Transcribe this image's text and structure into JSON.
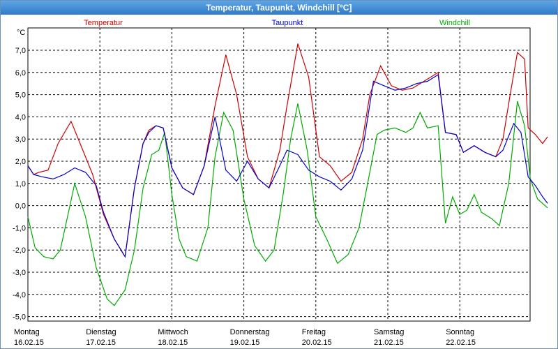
{
  "window": {
    "title": "Temperatur, Taupunkt, Windchill [°C]"
  },
  "chart_data": {
    "type": "line",
    "title": "Temperatur, Taupunkt, Windchill [°C]",
    "ylabel": "°C",
    "ylim": [
      -5.0,
      7.0
    ],
    "y_ticks": [
      "7,0",
      "6,0",
      "5,0",
      "4,0",
      "3,0",
      "2,0",
      "1,0",
      "0,0",
      "-1,0",
      "-2,0",
      "-3,0",
      "-4,0",
      "-5,0"
    ],
    "xlim": [
      0,
      7
    ],
    "x_ticks": [
      {
        "day": "Montag",
        "date": "16.02.15",
        "x": 0
      },
      {
        "day": "Dienstag",
        "date": "17.02.15",
        "x": 1
      },
      {
        "day": "Mittwoch",
        "date": "18.02.15",
        "x": 2
      },
      {
        "day": "Donnerstag",
        "date": "19.02.15",
        "x": 3
      },
      {
        "day": "Freitag",
        "date": "20.02.15",
        "x": 4
      },
      {
        "day": "Samstag",
        "date": "21.02.15",
        "x": 5
      },
      {
        "day": "Sonntag",
        "date": "22.02.15",
        "x": 6
      }
    ],
    "grid": true,
    "legend_position": "top",
    "series": [
      {
        "name": "Temperatur",
        "color": "#cc0000",
        "points": [
          [
            0,
            1.8
          ],
          [
            0.08,
            1.4
          ],
          [
            0.15,
            1.5
          ],
          [
            0.28,
            1.6
          ],
          [
            0.42,
            2.8
          ],
          [
            0.6,
            3.8
          ],
          [
            0.75,
            2.6
          ],
          [
            0.9,
            1.4
          ],
          [
            1.05,
            -0.4
          ],
          [
            1.2,
            -1.5
          ],
          [
            1.35,
            -2.3
          ],
          [
            1.48,
            0.8
          ],
          [
            1.6,
            2.8
          ],
          [
            1.68,
            3.4
          ],
          [
            1.78,
            3.6
          ],
          [
            1.88,
            3.5
          ],
          [
            2.0,
            1.7
          ],
          [
            2.15,
            0.8
          ],
          [
            2.3,
            0.5
          ],
          [
            2.45,
            1.8
          ],
          [
            2.6,
            4.5
          ],
          [
            2.75,
            6.8
          ],
          [
            2.9,
            5.0
          ],
          [
            3.05,
            2.2
          ],
          [
            3.2,
            1.2
          ],
          [
            3.35,
            0.8
          ],
          [
            3.5,
            2.5
          ],
          [
            3.6,
            4.5
          ],
          [
            3.75,
            7.3
          ],
          [
            3.9,
            5.8
          ],
          [
            4.05,
            2.2
          ],
          [
            4.2,
            1.8
          ],
          [
            4.35,
            1.1
          ],
          [
            4.5,
            1.5
          ],
          [
            4.65,
            3.0
          ],
          [
            4.75,
            5.0
          ],
          [
            4.9,
            6.3
          ],
          [
            5.05,
            5.4
          ],
          [
            5.2,
            5.2
          ],
          [
            5.35,
            5.3
          ],
          [
            5.45,
            5.5
          ],
          [
            5.6,
            5.8
          ],
          [
            5.7,
            6.0
          ],
          [
            5.8,
            3.3
          ],
          [
            5.95,
            3.2
          ],
          [
            6.05,
            2.4
          ],
          [
            6.2,
            2.7
          ],
          [
            6.35,
            2.4
          ],
          [
            6.5,
            2.2
          ],
          [
            6.6,
            3.0
          ],
          [
            6.7,
            5.0
          ],
          [
            6.8,
            6.9
          ],
          [
            6.9,
            6.6
          ],
          [
            6.95,
            3.5
          ],
          [
            7.05,
            3.2
          ],
          [
            7.15,
            2.8
          ],
          [
            7.22,
            3.1
          ]
        ]
      },
      {
        "name": "Taupunkt",
        "color": "#0000cc",
        "points": [
          [
            0,
            1.8
          ],
          [
            0.08,
            1.4
          ],
          [
            0.2,
            1.3
          ],
          [
            0.35,
            1.2
          ],
          [
            0.5,
            1.4
          ],
          [
            0.65,
            1.7
          ],
          [
            0.8,
            1.5
          ],
          [
            0.95,
            0.9
          ],
          [
            1.05,
            -0.3
          ],
          [
            1.2,
            -1.5
          ],
          [
            1.35,
            -2.3
          ],
          [
            1.48,
            0.8
          ],
          [
            1.6,
            2.8
          ],
          [
            1.68,
            3.3
          ],
          [
            1.78,
            3.6
          ],
          [
            1.88,
            3.5
          ],
          [
            2.0,
            1.7
          ],
          [
            2.15,
            0.8
          ],
          [
            2.3,
            0.5
          ],
          [
            2.45,
            1.8
          ],
          [
            2.6,
            4.0
          ],
          [
            2.75,
            1.6
          ],
          [
            2.9,
            1.1
          ],
          [
            3.05,
            2.0
          ],
          [
            3.2,
            1.2
          ],
          [
            3.35,
            0.8
          ],
          [
            3.5,
            1.8
          ],
          [
            3.6,
            2.5
          ],
          [
            3.75,
            2.3
          ],
          [
            3.9,
            1.6
          ],
          [
            4.05,
            1.3
          ],
          [
            4.2,
            1.1
          ],
          [
            4.35,
            0.7
          ],
          [
            4.5,
            1.2
          ],
          [
            4.65,
            2.5
          ],
          [
            4.8,
            5.6
          ],
          [
            4.95,
            5.4
          ],
          [
            5.1,
            5.2
          ],
          [
            5.25,
            5.3
          ],
          [
            5.4,
            5.5
          ],
          [
            5.55,
            5.6
          ],
          [
            5.7,
            5.9
          ],
          [
            5.8,
            3.3
          ],
          [
            5.95,
            3.2
          ],
          [
            6.05,
            2.4
          ],
          [
            6.2,
            2.7
          ],
          [
            6.35,
            2.4
          ],
          [
            6.5,
            2.2
          ],
          [
            6.6,
            2.5
          ],
          [
            6.75,
            3.7
          ],
          [
            6.85,
            3.3
          ],
          [
            6.95,
            1.3
          ],
          [
            7.05,
            0.9
          ],
          [
            7.15,
            0.4
          ],
          [
            7.22,
            0.1
          ]
        ]
      },
      {
        "name": "Windchill",
        "color": "#00aa00",
        "points": [
          [
            0,
            -0.5
          ],
          [
            0.1,
            -1.9
          ],
          [
            0.22,
            -2.3
          ],
          [
            0.35,
            -2.4
          ],
          [
            0.45,
            -2.0
          ],
          [
            0.55,
            -0.5
          ],
          [
            0.65,
            1.0
          ],
          [
            0.8,
            -0.5
          ],
          [
            0.95,
            -2.8
          ],
          [
            1.1,
            -4.2
          ],
          [
            1.2,
            -4.5
          ],
          [
            1.35,
            -3.8
          ],
          [
            1.48,
            -2.0
          ],
          [
            1.6,
            0.8
          ],
          [
            1.72,
            2.3
          ],
          [
            1.82,
            2.5
          ],
          [
            1.9,
            3.3
          ],
          [
            2.0,
            0.5
          ],
          [
            2.1,
            -1.5
          ],
          [
            2.2,
            -2.3
          ],
          [
            2.35,
            -2.5
          ],
          [
            2.5,
            -1.0
          ],
          [
            2.6,
            2.2
          ],
          [
            2.72,
            4.2
          ],
          [
            2.85,
            3.4
          ],
          [
            3.0,
            0.3
          ],
          [
            3.15,
            -1.8
          ],
          [
            3.3,
            -2.5
          ],
          [
            3.42,
            -2.0
          ],
          [
            3.55,
            0.6
          ],
          [
            3.65,
            3.0
          ],
          [
            3.75,
            4.6
          ],
          [
            3.88,
            2.5
          ],
          [
            4.0,
            -0.5
          ],
          [
            4.15,
            -1.5
          ],
          [
            4.3,
            -2.6
          ],
          [
            4.45,
            -2.2
          ],
          [
            4.6,
            -1.0
          ],
          [
            4.75,
            1.5
          ],
          [
            4.85,
            3.2
          ],
          [
            4.95,
            3.4
          ],
          [
            5.1,
            3.5
          ],
          [
            5.25,
            3.3
          ],
          [
            5.35,
            3.5
          ],
          [
            5.45,
            4.2
          ],
          [
            5.55,
            3.5
          ],
          [
            5.7,
            3.6
          ],
          [
            5.8,
            -0.8
          ],
          [
            5.9,
            0.4
          ],
          [
            6.0,
            -0.4
          ],
          [
            6.1,
            -0.2
          ],
          [
            6.2,
            0.5
          ],
          [
            6.3,
            -0.3
          ],
          [
            6.45,
            -0.6
          ],
          [
            6.55,
            -0.9
          ],
          [
            6.68,
            1.0
          ],
          [
            6.8,
            4.7
          ],
          [
            6.9,
            3.6
          ],
          [
            6.98,
            1.2
          ],
          [
            7.08,
            0.3
          ],
          [
            7.22,
            -0.1
          ]
        ]
      }
    ]
  }
}
